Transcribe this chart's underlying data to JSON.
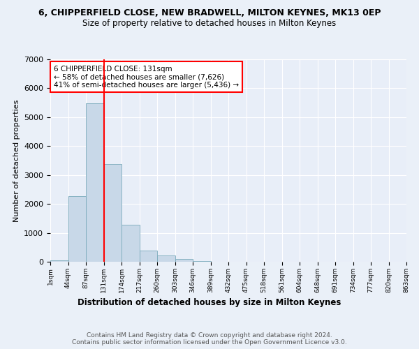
{
  "title1": "6, CHIPPERFIELD CLOSE, NEW BRADWELL, MILTON KEYNES, MK13 0EP",
  "title2": "Size of property relative to detached houses in Milton Keynes",
  "xlabel": "Distribution of detached houses by size in Milton Keynes",
  "ylabel": "Number of detached properties",
  "bar_values": [
    50,
    2270,
    5490,
    3390,
    1285,
    390,
    215,
    90,
    35,
    10,
    5,
    0,
    0,
    0,
    0,
    0,
    0,
    0,
    0,
    0
  ],
  "bin_labels": [
    "1sqm",
    "44sqm",
    "87sqm",
    "131sqm",
    "174sqm",
    "217sqm",
    "260sqm",
    "303sqm",
    "346sqm",
    "389sqm",
    "432sqm",
    "475sqm",
    "518sqm",
    "561sqm",
    "604sqm",
    "648sqm",
    "691sqm",
    "734sqm",
    "777sqm",
    "820sqm",
    "863sqm"
  ],
  "bar_color": "#c8d8e8",
  "bar_edge_color": "#7aaabb",
  "vline_color": "red",
  "annotation_text": "6 CHIPPERFIELD CLOSE: 131sqm\n← 58% of detached houses are smaller (7,626)\n41% of semi-detached houses are larger (5,436) →",
  "annotation_box_color": "white",
  "annotation_box_edge": "red",
  "ylim": [
    0,
    7000
  ],
  "yticks": [
    0,
    1000,
    2000,
    3000,
    4000,
    5000,
    6000,
    7000
  ],
  "footer": "Contains HM Land Registry data © Crown copyright and database right 2024.\nContains public sector information licensed under the Open Government Licence v3.0.",
  "bg_color": "#eaf0f8",
  "plot_bg_color": "#e8eef8"
}
